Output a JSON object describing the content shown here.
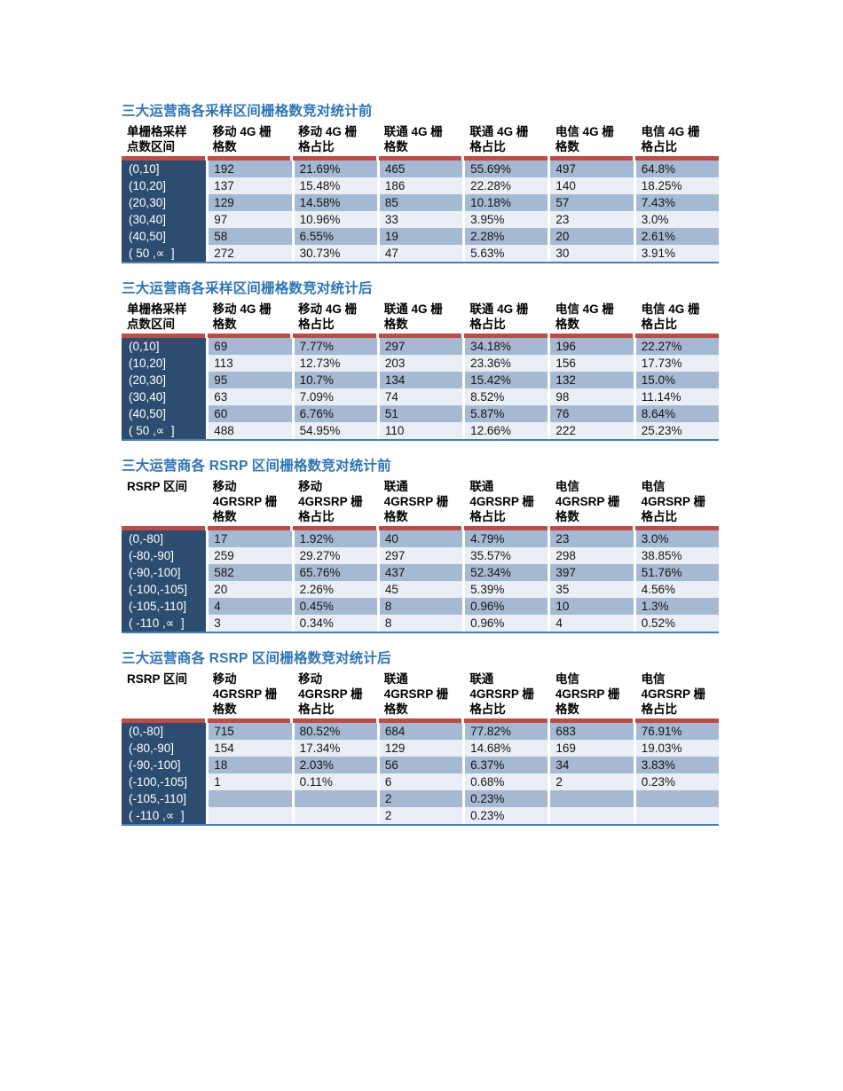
{
  "colors": {
    "page_bg": "#ffffff",
    "title": "#2E74B5",
    "accent_red_bar": "#BE4B48",
    "row_header_bg": "#2D4D70",
    "row_header_text": "#ffffff",
    "row_odd_bg": "#A6B9D2",
    "row_even_bg": "#EAEFF6",
    "table_bottom_border": "#4A7CB5",
    "header_text": "#000000"
  },
  "tables": [
    {
      "title": "三大运营商各采样区间栅格数竞对统计前",
      "columns": [
        "单栅格采样\n点数区间",
        "移动 4G 栅\n格数",
        "移动 4G 栅\n格占比",
        "联通 4G 栅\n格数",
        "联通 4G 栅\n格占比",
        "电信 4G 栅\n格数",
        "电信 4G 栅\n格占比"
      ],
      "rows": [
        [
          "(0,10]",
          "192",
          "21.69%",
          "465",
          "55.69%",
          "497",
          "64.8%"
        ],
        [
          "(10,20]",
          "137",
          "15.48%",
          "186",
          "22.28%",
          "140",
          "18.25%"
        ],
        [
          "(20,30]",
          "129",
          "14.58%",
          "85",
          "10.18%",
          "57",
          "7.43%"
        ],
        [
          "(30,40]",
          "97",
          "10.96%",
          "33",
          "3.95%",
          "23",
          "3.0%"
        ],
        [
          "(40,50]",
          "58",
          "6.55%",
          "19",
          "2.28%",
          "20",
          "2.61%"
        ],
        [
          "( 50 ,∝  ]",
          "272",
          "30.73%",
          "47",
          "5.63%",
          "30",
          "3.91%"
        ]
      ]
    },
    {
      "title": "三大运营商各采样区间栅格数竞对统计后",
      "columns": [
        "单栅格采样\n点数区间",
        "移动 4G 栅\n格数",
        "移动 4G 栅\n格占比",
        "联通 4G 栅\n格数",
        "联通 4G 栅\n格占比",
        "电信 4G 栅\n格数",
        "电信 4G 栅\n格占比"
      ],
      "rows": [
        [
          "(0,10]",
          "69",
          "7.77%",
          "297",
          "34.18%",
          "196",
          "22.27%"
        ],
        [
          "(10,20]",
          "113",
          "12.73%",
          "203",
          "23.36%",
          "156",
          "17.73%"
        ],
        [
          "(20,30]",
          "95",
          "10.7%",
          "134",
          "15.42%",
          "132",
          "15.0%"
        ],
        [
          "(30,40]",
          "63",
          "7.09%",
          "74",
          "8.52%",
          "98",
          "11.14%"
        ],
        [
          "(40,50]",
          "60",
          "6.76%",
          "51",
          "5.87%",
          "76",
          "8.64%"
        ],
        [
          "( 50 ,∝  ]",
          "488",
          "54.95%",
          "110",
          "12.66%",
          "222",
          "25.23%"
        ]
      ]
    },
    {
      "title": "三大运营商各 RSRP 区间栅格数竞对统计前",
      "columns": [
        "RSRP 区间",
        "移动\n4GRSRP 栅\n格数",
        "移动\n4GRSRP 栅\n格占比",
        "联通\n4GRSRP 栅\n格数",
        "联通\n4GRSRP 栅\n格占比",
        "电信\n4GRSRP 栅\n格数",
        "电信\n4GRSRP 栅\n格占比"
      ],
      "rows": [
        [
          "(0,-80]",
          "17",
          "1.92%",
          "40",
          "4.79%",
          "23",
          "3.0%"
        ],
        [
          "(-80,-90]",
          "259",
          "29.27%",
          "297",
          "35.57%",
          "298",
          "38.85%"
        ],
        [
          "(-90,-100]",
          "582",
          "65.76%",
          "437",
          "52.34%",
          "397",
          "51.76%"
        ],
        [
          "(-100,-105]",
          "20",
          "2.26%",
          "45",
          "5.39%",
          "35",
          "4.56%"
        ],
        [
          "(-105,-110]",
          "4",
          "0.45%",
          "8",
          "0.96%",
          "10",
          "1.3%"
        ],
        [
          "( -110 ,∝  ]",
          "3",
          "0.34%",
          "8",
          "0.96%",
          "4",
          "0.52%"
        ]
      ]
    },
    {
      "title": "三大运营商各 RSRP 区间栅格数竞对统计后",
      "columns": [
        "RSRP 区间",
        "移动\n4GRSRP 栅\n格数",
        "移动\n4GRSRP 栅\n格占比",
        "联通\n4GRSRP 栅\n格数",
        "联通\n4GRSRP 栅\n格占比",
        "电信\n4GRSRP 栅\n格数",
        "电信\n4GRSRP 栅\n格占比"
      ],
      "rows": [
        [
          "(0,-80]",
          "715",
          "80.52%",
          "684",
          "77.82%",
          "683",
          "76.91%"
        ],
        [
          "(-80,-90]",
          "154",
          "17.34%",
          "129",
          "14.68%",
          "169",
          "19.03%"
        ],
        [
          "(-90,-100]",
          "18",
          "2.03%",
          "56",
          "6.37%",
          "34",
          "3.83%"
        ],
        [
          "(-100,-105]",
          "1",
          "0.11%",
          "6",
          "0.68%",
          "2",
          "0.23%"
        ],
        [
          "(-105,-110]",
          "",
          "",
          "2",
          "0.23%",
          "",
          ""
        ],
        [
          "( -110 ,∝  ]",
          "",
          "",
          "2",
          "0.23%",
          "",
          ""
        ]
      ]
    }
  ]
}
